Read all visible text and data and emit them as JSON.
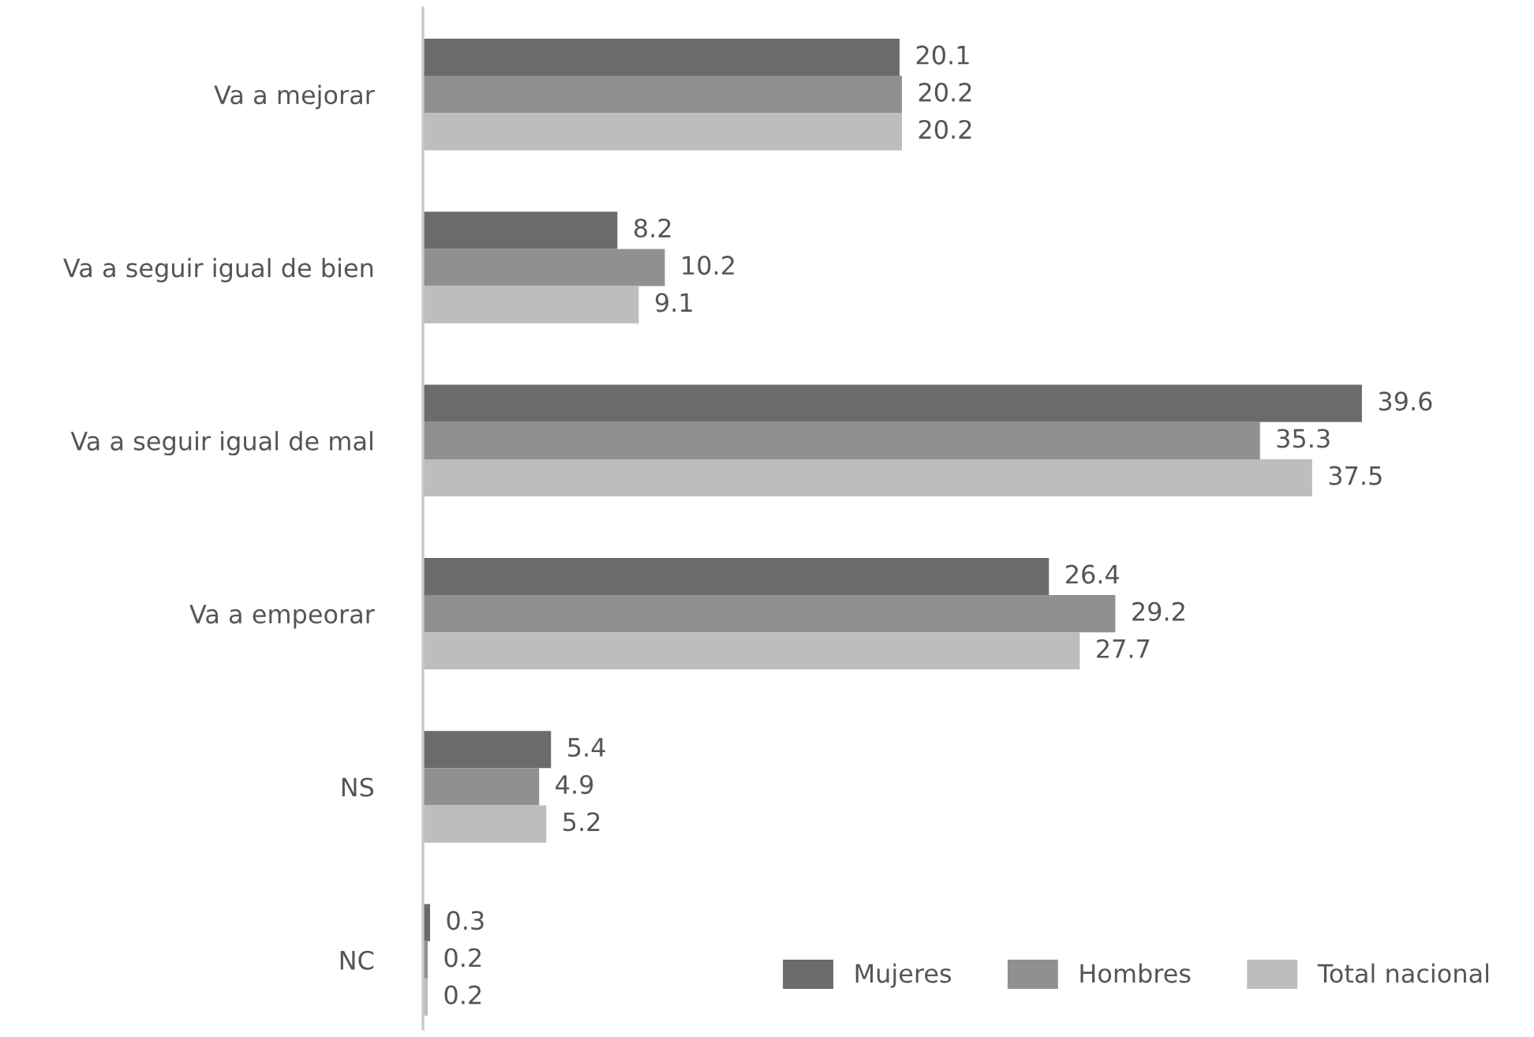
{
  "chart_data": {
    "type": "bar",
    "orientation": "horizontal",
    "categories": [
      "Va a mejorar",
      "Va a seguir igual de bien",
      "Va a seguir igual de mal",
      "Va a empeorar",
      "NS",
      "NC"
    ],
    "series": [
      {
        "name": "Mujeres",
        "color": "#6a6b6c",
        "values": [
          20.1,
          8.2,
          39.6,
          26.4,
          5.4,
          0.3
        ]
      },
      {
        "name": "Hombres",
        "color": "#8e9091",
        "values": [
          20.2,
          10.2,
          35.3,
          29.2,
          4.9,
          0.2
        ]
      },
      {
        "name": "Total nacional",
        "color": "#bcbdbe",
        "values": [
          20.2,
          9.1,
          37.5,
          27.7,
          5.2,
          0.2
        ]
      }
    ],
    "data_labels": true,
    "legend": "bottom right",
    "grid": false,
    "tick_labels": "y"
  }
}
